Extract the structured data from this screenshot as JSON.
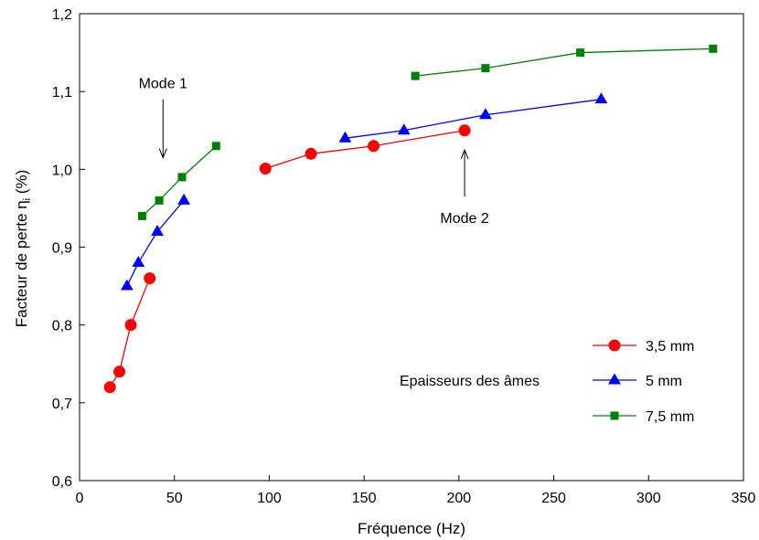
{
  "chart_data": {
    "type": "line",
    "xlabel": "Fréquence (Hz)",
    "ylabel_main": "Facteur de  perte η",
    "ylabel_sub": "i",
    "ylabel_tail": " (%)",
    "xlim": [
      0,
      350
    ],
    "ylim": [
      0.6,
      1.2
    ],
    "x_ticks": [
      0,
      50,
      100,
      150,
      200,
      250,
      300,
      350
    ],
    "y_ticks": [
      0.6,
      0.7,
      0.8,
      0.9,
      1.0,
      1.1,
      1.2
    ],
    "x_tick_labels": [
      "0",
      "50",
      "100",
      "150",
      "200",
      "250",
      "300",
      "350"
    ],
    "y_tick_labels": [
      "0,6",
      "0,7",
      "0,8",
      "0,9",
      "1,0",
      "1,1",
      "1,2"
    ],
    "grid": false,
    "legend_position": "bottom-right",
    "legend_title": "Epaisseurs des âmes",
    "annotations": [
      {
        "id": "mode1",
        "text": "Mode 1",
        "arrow_tip": [
          44,
          1.015
        ],
        "arrow_tail": [
          44,
          1.09
        ]
      },
      {
        "id": "mode2",
        "text": "Mode 2",
        "arrow_tip": [
          203,
          1.025
        ],
        "arrow_tail": [
          203,
          0.965
        ]
      }
    ],
    "series": [
      {
        "name": "3,5 mm",
        "color": "#ff0000",
        "marker": "circle",
        "groups": [
          [
            [
              16,
              0.72
            ],
            [
              21,
              0.74
            ],
            [
              27,
              0.8
            ],
            [
              37,
              0.86
            ]
          ],
          [
            [
              98,
              1.001
            ],
            [
              122,
              1.02
            ],
            [
              155,
              1.03
            ],
            [
              203,
              1.05
            ]
          ]
        ]
      },
      {
        "name": "5 mm",
        "color": "#0000ff",
        "marker": "triangle",
        "groups": [
          [
            [
              25,
              0.85
            ],
            [
              31,
              0.88
            ],
            [
              41,
              0.92
            ],
            [
              55,
              0.96
            ]
          ],
          [
            [
              140,
              1.04
            ],
            [
              171,
              1.05
            ],
            [
              214,
              1.07
            ],
            [
              275,
              1.09
            ]
          ]
        ]
      },
      {
        "name": "7,5 mm",
        "color": "#008000",
        "marker": "square",
        "groups": [
          [
            [
              33,
              0.94
            ],
            [
              42,
              0.96
            ],
            [
              54,
              0.99
            ],
            [
              72,
              1.03
            ]
          ],
          [
            [
              177,
              1.12
            ],
            [
              214,
              1.13
            ],
            [
              264,
              1.15
            ],
            [
              334,
              1.155
            ]
          ]
        ]
      }
    ]
  }
}
